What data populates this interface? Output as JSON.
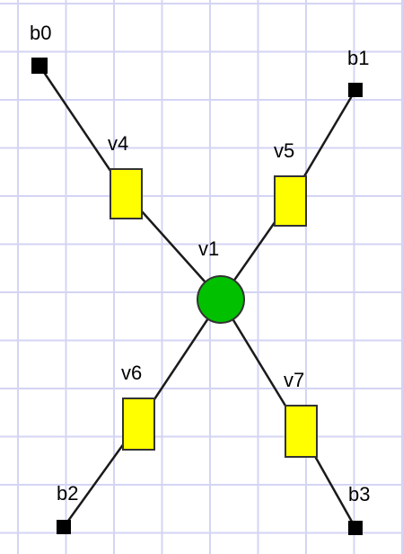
{
  "diagram": {
    "nodes": [
      {
        "id": "b0",
        "label": "b0",
        "kind": "terminal",
        "color": "#000000"
      },
      {
        "id": "b1",
        "label": "b1",
        "kind": "terminal",
        "color": "#000000"
      },
      {
        "id": "b2",
        "label": "b2",
        "kind": "terminal",
        "color": "#000000"
      },
      {
        "id": "b3",
        "label": "b3",
        "kind": "terminal",
        "color": "#000000"
      },
      {
        "id": "v1",
        "label": "v1",
        "kind": "hub",
        "color": "#00c000"
      },
      {
        "id": "v4",
        "label": "v4",
        "kind": "block",
        "color": "#ffff00"
      },
      {
        "id": "v5",
        "label": "v5",
        "kind": "block",
        "color": "#ffff00"
      },
      {
        "id": "v6",
        "label": "v6",
        "kind": "block",
        "color": "#ffff00"
      },
      {
        "id": "v7",
        "label": "v7",
        "kind": "block",
        "color": "#ffff00"
      }
    ],
    "edges": [
      [
        "b0",
        "v4"
      ],
      [
        "v4",
        "v1"
      ],
      [
        "b1",
        "v5"
      ],
      [
        "v5",
        "v1"
      ],
      [
        "b2",
        "v6"
      ],
      [
        "v6",
        "v1"
      ],
      [
        "b3",
        "v7"
      ],
      [
        "v7",
        "v1"
      ]
    ]
  }
}
